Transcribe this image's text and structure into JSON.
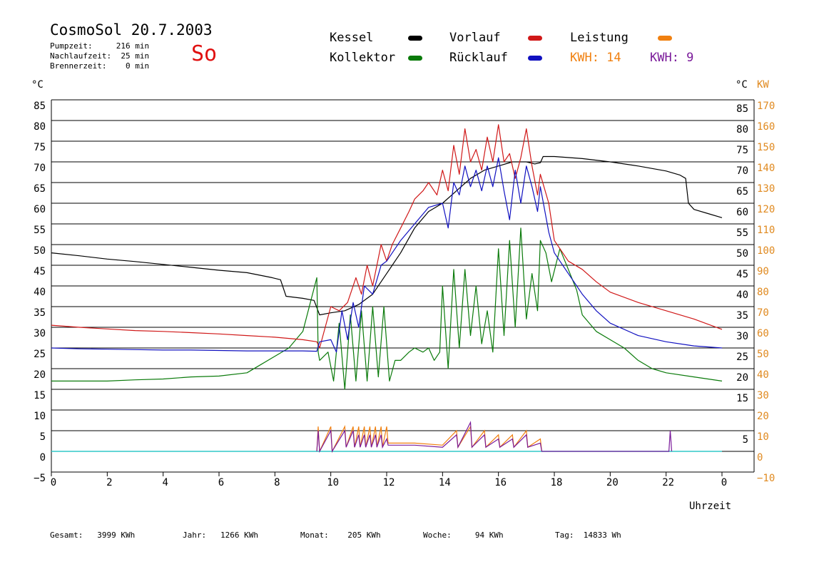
{
  "header": {
    "title": "CosmoSol 20.7.2003",
    "day": "So",
    "pumpzeit": "Pumpzeit:     216 min",
    "nachlaufzeit": "Nachlaufzeit:  25 min",
    "brennerzeit": "Brennerzeit:    0 min"
  },
  "legend": {
    "kessel": "Kessel",
    "kollektor": "Kollektor",
    "vorlauf": "Vorlauf",
    "ruecklauf": "Rücklauf",
    "leistung": "Leistung",
    "kwh_orange": "KWH: 14",
    "kwh_purple": "KWH: 9"
  },
  "footer": {
    "gesamt": "Gesamt:   3999 KWh",
    "jahr": "Jahr:   1266 KWh",
    "monat": "Monat:    205 KWh",
    "woche": "Woche:     94 KWh",
    "tag": "Tag:  14833 Wh"
  },
  "colors": {
    "kessel": "#000000",
    "kollektor": "#0a7a0a",
    "vorlauf": "#d01818",
    "ruecklauf": "#1010c0",
    "leistung": "#f08010",
    "kwh2": "#7a1a9a",
    "zero_line": "#30c8c8",
    "axis_orange": "#e08a20"
  },
  "chart_data": {
    "type": "line",
    "xlabel": "Uhrzeit",
    "ylabel_left": "°C",
    "ylabel_right": "°C",
    "ylabel_right2": "KW",
    "xlim": [
      0,
      24
    ],
    "ylim": [
      -5,
      85
    ],
    "x_ticks": [
      "0",
      "2",
      "4",
      "6",
      "8",
      "10",
      "12",
      "14",
      "16",
      "18",
      "20",
      "22",
      "0"
    ],
    "y_ticks_left": [
      "85",
      "80",
      "75",
      "70",
      "65",
      "60",
      "55",
      "50",
      "45",
      "40",
      "35",
      "30",
      "25",
      "20",
      "15",
      "10",
      "5",
      "0",
      "−5"
    ],
    "y_ticks_right": [
      "85",
      "80",
      "75",
      "70",
      "65",
      "60",
      "55",
      "50",
      "45",
      "40",
      "35",
      "30",
      "25",
      "20",
      "15",
      "",
      "5",
      "",
      ""
    ],
    "y_ticks_kw": [
      "170",
      "160",
      "150",
      "140",
      "130",
      "120",
      "110",
      "100",
      "90",
      "80",
      "70",
      "60",
      "50",
      "40",
      "30",
      "20",
      "10",
      "0",
      "−10"
    ],
    "series": [
      {
        "name": "Kessel",
        "color": "#000000",
        "points": [
          [
            0,
            48
          ],
          [
            1,
            47.3
          ],
          [
            2,
            46.5
          ],
          [
            3,
            45.9
          ],
          [
            4,
            45.2
          ],
          [
            5,
            44.5
          ],
          [
            6,
            43.8
          ],
          [
            7,
            43.2
          ],
          [
            7.9,
            42
          ],
          [
            8.2,
            41.5
          ],
          [
            8.4,
            37.5
          ],
          [
            9,
            37
          ],
          [
            9.4,
            36.5
          ],
          [
            9.6,
            33
          ],
          [
            10,
            33.5
          ],
          [
            10.5,
            34
          ],
          [
            11,
            35.5
          ],
          [
            11.5,
            38
          ],
          [
            12,
            43
          ],
          [
            12.5,
            48
          ],
          [
            13,
            54
          ],
          [
            13.5,
            58
          ],
          [
            14,
            60
          ],
          [
            14.5,
            63
          ],
          [
            15,
            66
          ],
          [
            15.5,
            68
          ],
          [
            16,
            69
          ],
          [
            16.5,
            70
          ],
          [
            17,
            70
          ],
          [
            17.3,
            69.5
          ],
          [
            17.5,
            69.8
          ],
          [
            17.6,
            71.3
          ],
          [
            18,
            71.3
          ],
          [
            19,
            70.8
          ],
          [
            20,
            70
          ],
          [
            21,
            69
          ],
          [
            22,
            67.8
          ],
          [
            22.5,
            66.8
          ],
          [
            22.7,
            66
          ],
          [
            22.8,
            60
          ],
          [
            23,
            58.5
          ],
          [
            23.5,
            57.5
          ],
          [
            24,
            56.5
          ]
        ]
      },
      {
        "name": "Kollektor",
        "color": "#0a7a0a",
        "points": [
          [
            0,
            17
          ],
          [
            1,
            17
          ],
          [
            2,
            17
          ],
          [
            3,
            17.3
          ],
          [
            4,
            17.5
          ],
          [
            5,
            18
          ],
          [
            6,
            18.2
          ],
          [
            7,
            19
          ],
          [
            7.5,
            21
          ],
          [
            8,
            23
          ],
          [
            8.5,
            25
          ],
          [
            9,
            29
          ],
          [
            9.5,
            42
          ],
          [
            9.55,
            24
          ],
          [
            9.6,
            22
          ],
          [
            9.9,
            24
          ],
          [
            10.1,
            17
          ],
          [
            10.3,
            31
          ],
          [
            10.5,
            15
          ],
          [
            10.7,
            33
          ],
          [
            10.9,
            17
          ],
          [
            11.1,
            34
          ],
          [
            11.3,
            17
          ],
          [
            11.5,
            35
          ],
          [
            11.7,
            18
          ],
          [
            11.9,
            35
          ],
          [
            12.1,
            17
          ],
          [
            12.3,
            22
          ],
          [
            12.5,
            22
          ],
          [
            12.8,
            24
          ],
          [
            13,
            25
          ],
          [
            13.3,
            24
          ],
          [
            13.5,
            25
          ],
          [
            13.7,
            22
          ],
          [
            13.9,
            24
          ],
          [
            14,
            40
          ],
          [
            14.2,
            20
          ],
          [
            14.4,
            44
          ],
          [
            14.6,
            25
          ],
          [
            14.8,
            44
          ],
          [
            15,
            28
          ],
          [
            15.2,
            40
          ],
          [
            15.4,
            26
          ],
          [
            15.6,
            34
          ],
          [
            15.8,
            24
          ],
          [
            16,
            49
          ],
          [
            16.2,
            28
          ],
          [
            16.4,
            51
          ],
          [
            16.6,
            30
          ],
          [
            16.8,
            54
          ],
          [
            17,
            32
          ],
          [
            17.2,
            43
          ],
          [
            17.4,
            34
          ],
          [
            17.5,
            51
          ],
          [
            17.7,
            48
          ],
          [
            17.9,
            41
          ],
          [
            18.2,
            49
          ],
          [
            18.5,
            44
          ],
          [
            18.8,
            39
          ],
          [
            19,
            33
          ],
          [
            19.5,
            29
          ],
          [
            20,
            27
          ],
          [
            20.5,
            25
          ],
          [
            21,
            22
          ],
          [
            21.5,
            20
          ],
          [
            22,
            19
          ],
          [
            23,
            18
          ],
          [
            24,
            17
          ]
        ]
      },
      {
        "name": "Vorlauf",
        "color": "#d01818",
        "points": [
          [
            0,
            30.5
          ],
          [
            1,
            30
          ],
          [
            2,
            29.6
          ],
          [
            3,
            29.2
          ],
          [
            4,
            29
          ],
          [
            5,
            28.7
          ],
          [
            6,
            28.4
          ],
          [
            7,
            28
          ],
          [
            8,
            27.6
          ],
          [
            9,
            27
          ],
          [
            9.5,
            26.5
          ],
          [
            9.6,
            25
          ],
          [
            10,
            35
          ],
          [
            10.3,
            34
          ],
          [
            10.6,
            36
          ],
          [
            10.9,
            42
          ],
          [
            11.1,
            38
          ],
          [
            11.3,
            45
          ],
          [
            11.5,
            40
          ],
          [
            11.8,
            50
          ],
          [
            12,
            46
          ],
          [
            12.2,
            50
          ],
          [
            12.5,
            54
          ],
          [
            12.8,
            58
          ],
          [
            13,
            61
          ],
          [
            13.3,
            63
          ],
          [
            13.5,
            65
          ],
          [
            13.8,
            62
          ],
          [
            14,
            68
          ],
          [
            14.2,
            63
          ],
          [
            14.4,
            74
          ],
          [
            14.6,
            67
          ],
          [
            14.8,
            78
          ],
          [
            15,
            70
          ],
          [
            15.2,
            73
          ],
          [
            15.4,
            68
          ],
          [
            15.6,
            76
          ],
          [
            15.8,
            70
          ],
          [
            16,
            79
          ],
          [
            16.2,
            70
          ],
          [
            16.4,
            72
          ],
          [
            16.6,
            66
          ],
          [
            16.8,
            71
          ],
          [
            17,
            78
          ],
          [
            17.2,
            69
          ],
          [
            17.4,
            62
          ],
          [
            17.5,
            67
          ],
          [
            17.8,
            60
          ],
          [
            18,
            51
          ],
          [
            18.5,
            46
          ],
          [
            19,
            44
          ],
          [
            19.5,
            41
          ],
          [
            20,
            38.5
          ],
          [
            21,
            36
          ],
          [
            22,
            34
          ],
          [
            23,
            32
          ],
          [
            24,
            29.5
          ]
        ]
      },
      {
        "name": "Rücklauf",
        "color": "#1010c0",
        "points": [
          [
            0,
            25
          ],
          [
            1,
            24.8
          ],
          [
            2,
            24.7
          ],
          [
            3,
            24.6
          ],
          [
            4,
            24.5
          ],
          [
            5,
            24.5
          ],
          [
            6,
            24.4
          ],
          [
            7,
            24.3
          ],
          [
            8,
            24.3
          ],
          [
            9,
            24.3
          ],
          [
            9.5,
            24.2
          ],
          [
            9.6,
            26.5
          ],
          [
            10,
            27
          ],
          [
            10.2,
            24
          ],
          [
            10.4,
            34
          ],
          [
            10.6,
            27
          ],
          [
            10.8,
            36
          ],
          [
            11,
            30
          ],
          [
            11.2,
            40
          ],
          [
            11.5,
            38
          ],
          [
            11.8,
            45
          ],
          [
            12,
            46
          ],
          [
            12.5,
            51
          ],
          [
            13,
            55
          ],
          [
            13.5,
            59
          ],
          [
            14,
            60
          ],
          [
            14.2,
            54
          ],
          [
            14.4,
            65
          ],
          [
            14.6,
            62
          ],
          [
            14.8,
            69
          ],
          [
            15,
            64
          ],
          [
            15.2,
            68
          ],
          [
            15.4,
            63
          ],
          [
            15.6,
            69
          ],
          [
            15.8,
            64
          ],
          [
            16,
            71
          ],
          [
            16.2,
            63
          ],
          [
            16.4,
            56
          ],
          [
            16.6,
            68
          ],
          [
            16.8,
            60
          ],
          [
            17,
            69
          ],
          [
            17.2,
            64
          ],
          [
            17.4,
            58
          ],
          [
            17.5,
            64
          ],
          [
            17.8,
            53
          ],
          [
            18,
            48
          ],
          [
            18.5,
            43
          ],
          [
            19,
            38
          ],
          [
            19.5,
            34
          ],
          [
            20,
            31
          ],
          [
            21,
            28
          ],
          [
            22,
            26.5
          ],
          [
            23,
            25.5
          ],
          [
            24,
            25
          ]
        ]
      }
    ],
    "power_series": [
      {
        "name": "Leistung",
        "color": "#f08010",
        "points": [
          [
            9.5,
            0
          ],
          [
            9.55,
            6
          ],
          [
            9.6,
            0
          ],
          [
            10,
            6
          ],
          [
            10.05,
            0
          ],
          [
            10.5,
            6
          ],
          [
            10.55,
            1
          ],
          [
            10.8,
            6
          ],
          [
            10.85,
            1
          ],
          [
            11,
            6
          ],
          [
            11.05,
            1
          ],
          [
            11.2,
            6
          ],
          [
            11.25,
            1
          ],
          [
            11.4,
            6
          ],
          [
            11.45,
            1
          ],
          [
            11.6,
            6
          ],
          [
            11.65,
            1
          ],
          [
            11.8,
            6
          ],
          [
            11.85,
            1
          ],
          [
            12,
            6
          ],
          [
            12.05,
            2
          ],
          [
            13,
            2
          ],
          [
            14,
            1.5
          ],
          [
            14.5,
            5
          ],
          [
            14.55,
            1
          ],
          [
            15,
            6
          ],
          [
            15.05,
            1
          ],
          [
            15.5,
            5
          ],
          [
            15.55,
            1
          ],
          [
            16,
            4
          ],
          [
            16.05,
            1
          ],
          [
            16.5,
            4
          ],
          [
            16.55,
            1
          ],
          [
            17,
            5
          ],
          [
            17.05,
            1
          ],
          [
            17.5,
            3
          ],
          [
            17.55,
            0
          ]
        ]
      },
      {
        "name": "KWH 2",
        "color": "#7a1a9a",
        "points": [
          [
            9.5,
            0
          ],
          [
            9.55,
            5
          ],
          [
            9.6,
            0
          ],
          [
            10,
            5
          ],
          [
            10.05,
            0
          ],
          [
            10.5,
            5
          ],
          [
            10.55,
            1
          ],
          [
            10.8,
            5
          ],
          [
            10.85,
            1
          ],
          [
            11,
            4
          ],
          [
            11.05,
            1
          ],
          [
            11.2,
            4
          ],
          [
            11.25,
            1
          ],
          [
            11.4,
            4
          ],
          [
            11.45,
            1
          ],
          [
            11.6,
            4
          ],
          [
            11.65,
            1
          ],
          [
            11.8,
            4
          ],
          [
            11.85,
            1
          ],
          [
            12,
            3
          ],
          [
            12.05,
            1.5
          ],
          [
            13,
            1.5
          ],
          [
            14,
            1
          ],
          [
            14.5,
            4
          ],
          [
            14.55,
            1
          ],
          [
            15,
            7
          ],
          [
            15.05,
            1
          ],
          [
            15.5,
            4
          ],
          [
            15.55,
            1
          ],
          [
            16,
            3
          ],
          [
            16.05,
            1
          ],
          [
            16.5,
            3
          ],
          [
            16.55,
            1
          ],
          [
            17,
            4
          ],
          [
            17.05,
            1
          ],
          [
            17.5,
            2
          ],
          [
            17.55,
            0
          ],
          [
            22.1,
            0
          ],
          [
            22.15,
            5
          ],
          [
            22.2,
            0
          ]
        ]
      }
    ]
  }
}
